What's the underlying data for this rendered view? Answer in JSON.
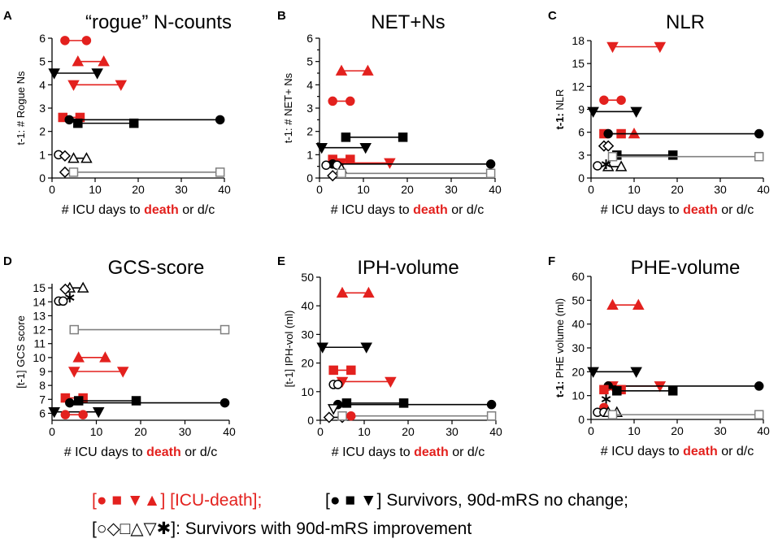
{
  "colors": {
    "red": "#e3211e",
    "black": "#000000",
    "grey": "#808080"
  },
  "chart_data": [
    {
      "panel": "A",
      "title": "“rogue” N-counts",
      "ylabel": "t-1: # Rogue Ns",
      "xlabel_parts": [
        "# ICU days to ",
        "death",
        " or d/c"
      ],
      "xlim": [
        0,
        40
      ],
      "ylim": [
        0,
        6
      ],
      "xticks": [
        0,
        10,
        20,
        30,
        40
      ],
      "yticks": [
        0,
        1,
        2,
        3,
        4,
        5,
        6
      ],
      "series": [
        {
          "name": "red circle",
          "color": "red",
          "marker": "circle",
          "fill": true,
          "x": [
            3,
            8
          ],
          "y": 5.9
        },
        {
          "name": "red triangle",
          "color": "red",
          "marker": "triangle",
          "fill": true,
          "x": [
            6,
            12
          ],
          "y": 5.0
        },
        {
          "name": "black down triangle",
          "color": "black",
          "marker": "triangledown",
          "fill": true,
          "x": [
            0.5,
            10.5
          ],
          "y": 4.5
        },
        {
          "name": "red down triangle",
          "color": "red",
          "marker": "triangledown",
          "fill": true,
          "x": [
            5,
            16
          ],
          "y": 4.0
        },
        {
          "name": "red square",
          "color": "red",
          "marker": "square",
          "fill": true,
          "x": [
            2.5,
            6.5
          ],
          "y": 2.6
        },
        {
          "name": "black circle",
          "color": "black",
          "marker": "circle",
          "fill": true,
          "x": [
            4,
            39
          ],
          "y": 2.5
        },
        {
          "name": "black square",
          "color": "black",
          "marker": "square",
          "fill": true,
          "x": [
            6,
            19
          ],
          "y": 2.35
        },
        {
          "name": "open circle",
          "color": "black",
          "marker": "circle",
          "fill": false,
          "x": [
            1.5
          ],
          "y": 1.0
        },
        {
          "name": "open diamond",
          "color": "black",
          "marker": "diamond",
          "fill": false,
          "x": [
            3
          ],
          "y": 0.95
        },
        {
          "name": "open triangle",
          "color": "black",
          "marker": "triangle",
          "fill": false,
          "x": [
            5,
            8
          ],
          "y": 0.85
        },
        {
          "name": "open diamond 2",
          "color": "black",
          "marker": "diamond",
          "fill": false,
          "x": [
            3
          ],
          "y": 0.25
        },
        {
          "name": "open square",
          "color": "grey",
          "marker": "square",
          "fill": false,
          "x": [
            5,
            39
          ],
          "y": 0.25
        }
      ]
    },
    {
      "panel": "B",
      "title": "NET+Ns",
      "ylabel": "t-1: # NET+ Ns",
      "xlabel_parts": [
        "# ICU days to ",
        "death",
        " or d/c"
      ],
      "xlim": [
        0,
        40
      ],
      "ylim": [
        0,
        6
      ],
      "xticks": [
        0,
        10,
        20,
        30,
        40
      ],
      "yticks": [
        0,
        0.5,
        1,
        1.5,
        2,
        2.5,
        3,
        3.5,
        4,
        4.5,
        5,
        5.5,
        6
      ],
      "ytick_labels": [
        "0",
        "",
        "1",
        "",
        "2",
        "",
        "3",
        "",
        "4",
        "",
        "5",
        "",
        "6"
      ],
      "series": [
        {
          "name": "red triangle",
          "color": "red",
          "marker": "triangle",
          "fill": true,
          "x": [
            5,
            11
          ],
          "y": 4.6
        },
        {
          "name": "red circle",
          "color": "red",
          "marker": "circle",
          "fill": true,
          "x": [
            3,
            7
          ],
          "y": 3.3
        },
        {
          "name": "black square",
          "color": "black",
          "marker": "square",
          "fill": true,
          "x": [
            6,
            19
          ],
          "y": 1.75
        },
        {
          "name": "black down triangle",
          "color": "black",
          "marker": "triangledown",
          "fill": true,
          "x": [
            0.5,
            10.5
          ],
          "y": 1.3
        },
        {
          "name": "red square",
          "color": "red",
          "marker": "square",
          "fill": true,
          "x": [
            3,
            7
          ],
          "y": 0.8
        },
        {
          "name": "red down triangle",
          "color": "red",
          "marker": "triangledown",
          "fill": true,
          "x": [
            5,
            16
          ],
          "y": 0.65
        },
        {
          "name": "black circle",
          "color": "black",
          "marker": "circle",
          "fill": true,
          "x": [
            3,
            39
          ],
          "y": 0.6
        },
        {
          "name": "open circle",
          "color": "black",
          "marker": "circle",
          "fill": false,
          "x": [
            1.5,
            4
          ],
          "y": 0.55
        },
        {
          "name": "open triangle",
          "color": "black",
          "marker": "triangle",
          "fill": false,
          "x": [
            5
          ],
          "y": 0.4
        },
        {
          "name": "open diamond",
          "color": "black",
          "marker": "diamond",
          "fill": false,
          "x": [
            3
          ],
          "y": 0.1
        },
        {
          "name": "open square",
          "color": "grey",
          "marker": "square",
          "fill": false,
          "x": [
            5,
            39
          ],
          "y": 0.2
        }
      ]
    },
    {
      "panel": "C",
      "title": "NLR",
      "ylabel": "t-1: NLR",
      "ylabel_bold_prefix": "t-1:",
      "xlabel_parts": [
        "# ICU days to ",
        "death",
        " or d/c"
      ],
      "xlim": [
        0,
        40
      ],
      "ylim": [
        0,
        18
      ],
      "xticks": [
        0,
        10,
        20,
        30,
        40
      ],
      "yticks": [
        0,
        3,
        6,
        9,
        12,
        15,
        18
      ],
      "series": [
        {
          "name": "red down triangle",
          "color": "red",
          "marker": "triangledown",
          "fill": true,
          "x": [
            5,
            16
          ],
          "y": 17.2
        },
        {
          "name": "red circle",
          "color": "red",
          "marker": "circle",
          "fill": true,
          "x": [
            3,
            7
          ],
          "y": 10.2
        },
        {
          "name": "black down triangle",
          "color": "black",
          "marker": "triangledown",
          "fill": true,
          "x": [
            0.5,
            10.5
          ],
          "y": 8.7
        },
        {
          "name": "red square",
          "color": "red",
          "marker": "square",
          "fill": true,
          "x": [
            3,
            7
          ],
          "y": 5.8
        },
        {
          "name": "red triangle",
          "color": "red",
          "marker": "triangle",
          "fill": true,
          "x": [
            10
          ],
          "y": 5.8
        },
        {
          "name": "black circle",
          "color": "black",
          "marker": "circle",
          "fill": true,
          "x": [
            4,
            39
          ],
          "y": 5.8
        },
        {
          "name": "open diamond",
          "color": "black",
          "marker": "diamond",
          "fill": false,
          "x": [
            3,
            4
          ],
          "y": 4.2
        },
        {
          "name": "black square",
          "color": "black",
          "marker": "square",
          "fill": true,
          "x": [
            6,
            19
          ],
          "y": 3.0
        },
        {
          "name": "open square",
          "color": "grey",
          "marker": "square",
          "fill": false,
          "x": [
            5,
            39
          ],
          "y": 2.8
        },
        {
          "name": "open circle",
          "color": "black",
          "marker": "circle",
          "fill": false,
          "x": [
            1.5
          ],
          "y": 1.6
        },
        {
          "name": "open triangle",
          "color": "black",
          "marker": "triangle",
          "fill": false,
          "x": [
            4,
            7
          ],
          "y": 1.5
        },
        {
          "name": "asterisk",
          "color": "black",
          "marker": "star",
          "fill": false,
          "x": [
            3.5
          ],
          "y": 1.8
        }
      ]
    },
    {
      "panel": "D",
      "title": "GCS-score",
      "ylabel": "[t-1] GCS score",
      "xlabel_parts": [
        "# ICU days to ",
        "death",
        " or d/c"
      ],
      "xlim": [
        0,
        40
      ],
      "ylim": [
        5.5,
        15.3
      ],
      "xticks": [
        0,
        10,
        20,
        30,
        40
      ],
      "yticks": [
        6,
        7,
        8,
        9,
        10,
        11,
        12,
        13,
        14,
        15
      ],
      "series": [
        {
          "name": "open triangle",
          "color": "black",
          "marker": "triangle",
          "fill": false,
          "x": [
            4,
            7
          ],
          "y": 15.0
        },
        {
          "name": "open diamond",
          "color": "black",
          "marker": "diamond",
          "fill": false,
          "x": [
            3
          ],
          "y": 14.9
        },
        {
          "name": "asterisk",
          "color": "black",
          "marker": "star",
          "fill": false,
          "x": [
            4
          ],
          "y": 14.3
        },
        {
          "name": "open circle",
          "color": "black",
          "marker": "circle",
          "fill": false,
          "x": [
            1.5,
            2.5
          ],
          "y": 14.05
        },
        {
          "name": "open square",
          "color": "grey",
          "marker": "square",
          "fill": false,
          "x": [
            5,
            39
          ],
          "y": 12.0
        },
        {
          "name": "red triangle",
          "color": "red",
          "marker": "triangle",
          "fill": true,
          "x": [
            6,
            12
          ],
          "y": 10.0
        },
        {
          "name": "red down triangle",
          "color": "red",
          "marker": "triangledown",
          "fill": true,
          "x": [
            5,
            16
          ],
          "y": 9.0
        },
        {
          "name": "red square",
          "color": "red",
          "marker": "square",
          "fill": true,
          "x": [
            3,
            7
          ],
          "y": 7.1
        },
        {
          "name": "black square",
          "color": "black",
          "marker": "square",
          "fill": true,
          "x": [
            6,
            19
          ],
          "y": 6.9
        },
        {
          "name": "black circle",
          "color": "black",
          "marker": "circle",
          "fill": true,
          "x": [
            4,
            39
          ],
          "y": 6.75
        },
        {
          "name": "black down triangle",
          "color": "black",
          "marker": "triangledown",
          "fill": true,
          "x": [
            0.5,
            10.5
          ],
          "y": 6.1
        },
        {
          "name": "red circle",
          "color": "red",
          "marker": "circle",
          "fill": true,
          "x": [
            3,
            7
          ],
          "y": 5.9
        }
      ]
    },
    {
      "panel": "E",
      "title": "IPH-volume",
      "ylabel": "[t-1] IPH-vol (ml)",
      "xlabel_parts": [
        "# ICU days to ",
        "death",
        " or d/c"
      ],
      "xlim": [
        0,
        40
      ],
      "ylim": [
        0,
        50
      ],
      "xticks": [
        0,
        10,
        20,
        30,
        40
      ],
      "yticks": [
        0,
        10,
        20,
        30,
        40,
        50
      ],
      "series": [
        {
          "name": "red triangle",
          "color": "red",
          "marker": "triangle",
          "fill": true,
          "x": [
            5,
            11
          ],
          "y": 44.5
        },
        {
          "name": "black down triangle",
          "color": "black",
          "marker": "triangledown",
          "fill": true,
          "x": [
            0.5,
            10.5
          ],
          "y": 25.5
        },
        {
          "name": "red square",
          "color": "red",
          "marker": "square",
          "fill": true,
          "x": [
            3,
            7
          ],
          "y": 17.5
        },
        {
          "name": "red down triangle",
          "color": "red",
          "marker": "triangledown",
          "fill": true,
          "x": [
            5,
            16
          ],
          "y": 13.5
        },
        {
          "name": "open circle",
          "color": "black",
          "marker": "circle",
          "fill": false,
          "x": [
            3,
            4
          ],
          "y": 12.5
        },
        {
          "name": "black square",
          "color": "black",
          "marker": "square",
          "fill": true,
          "x": [
            6,
            19
          ],
          "y": 6.0
        },
        {
          "name": "black circle",
          "color": "black",
          "marker": "circle",
          "fill": true,
          "x": [
            4,
            39
          ],
          "y": 5.5
        },
        {
          "name": "open down triangle",
          "color": "black",
          "marker": "triangledown",
          "fill": false,
          "x": [
            3
          ],
          "y": 4.0
        },
        {
          "name": "open diamond",
          "color": "black",
          "marker": "diamond",
          "fill": false,
          "x": [
            2,
            5
          ],
          "y": 1.0
        },
        {
          "name": "open square",
          "color": "grey",
          "marker": "square",
          "fill": false,
          "x": [
            5,
            39
          ],
          "y": 1.5
        },
        {
          "name": "red circle",
          "color": "red",
          "marker": "circle",
          "fill": true,
          "x": [
            7
          ],
          "y": 1.5
        }
      ]
    },
    {
      "panel": "F",
      "title": "PHE-volume",
      "ylabel": "t-1: PHE volume (ml)",
      "ylabel_bold_prefix": "t-1:",
      "xlabel_parts": [
        "# ICU days to ",
        "death",
        " or d/c"
      ],
      "xlim": [
        0,
        40
      ],
      "ylim": [
        0,
        60
      ],
      "xticks": [
        0,
        10,
        20,
        30,
        40
      ],
      "yticks": [
        0,
        10,
        20,
        30,
        40,
        50,
        60
      ],
      "series": [
        {
          "name": "red triangle",
          "color": "red",
          "marker": "triangle",
          "fill": true,
          "x": [
            5,
            11
          ],
          "y": 48.0
        },
        {
          "name": "black down triangle",
          "color": "black",
          "marker": "triangledown",
          "fill": true,
          "x": [
            0.5,
            10.5
          ],
          "y": 20.0
        },
        {
          "name": "red down triangle",
          "color": "red",
          "marker": "triangledown",
          "fill": true,
          "x": [
            5,
            16
          ],
          "y": 14.0
        },
        {
          "name": "black circle",
          "color": "black",
          "marker": "circle",
          "fill": true,
          "x": [
            4,
            39
          ],
          "y": 14.0
        },
        {
          "name": "red square",
          "color": "red",
          "marker": "square",
          "fill": true,
          "x": [
            3,
            7
          ],
          "y": 12.5
        },
        {
          "name": "black square",
          "color": "black",
          "marker": "square",
          "fill": true,
          "x": [
            6,
            19
          ],
          "y": 12.0
        },
        {
          "name": "asterisk",
          "color": "black",
          "marker": "star",
          "fill": false,
          "x": [
            3.5
          ],
          "y": 8.5
        },
        {
          "name": "red circle",
          "color": "red",
          "marker": "circle",
          "fill": true,
          "x": [
            3
          ],
          "y": 5.0
        },
        {
          "name": "open circle",
          "color": "black",
          "marker": "circle",
          "fill": false,
          "x": [
            1.5,
            3
          ],
          "y": 3.0
        },
        {
          "name": "open triangle",
          "color": "black",
          "marker": "triangle",
          "fill": false,
          "x": [
            4,
            6
          ],
          "y": 3.0
        },
        {
          "name": "open square",
          "color": "grey",
          "marker": "square",
          "fill": false,
          "x": [
            5,
            39
          ],
          "y": 2.0
        }
      ]
    }
  ],
  "legend": {
    "line1_red": "[● ■ ▼▲] [ICU-death];",
    "line1_black": "[● ■ ▼] Survivors,  90d-mRS no change;",
    "line2": "[○◇□△▽✱]: Survivors with 90d-mRS improvement"
  }
}
